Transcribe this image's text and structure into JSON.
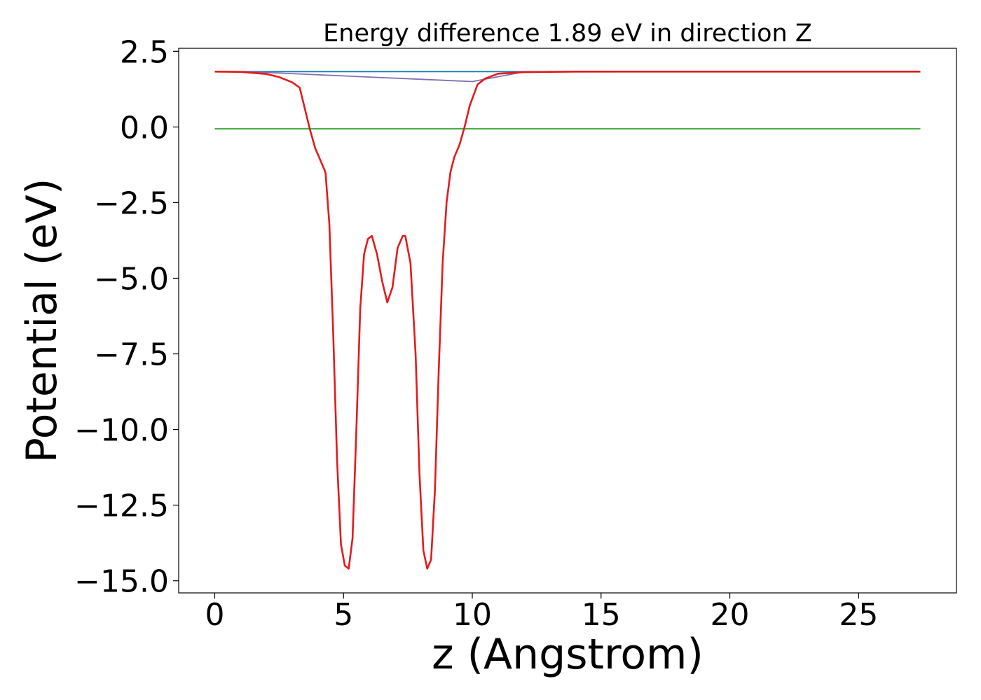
{
  "chart_data": {
    "type": "line",
    "title": "Energy difference 1.89 eV in direction Z",
    "xlabel": "z (Angstrom)",
    "ylabel": "Potential (eV)",
    "xlim": [
      -1.4,
      28.8
    ],
    "ylim": [
      -15.4,
      2.6
    ],
    "x_ticks": [
      0,
      5,
      10,
      15,
      20,
      25
    ],
    "x_tick_labels": [
      "0",
      "5",
      "10",
      "15",
      "20",
      "25"
    ],
    "y_ticks": [
      2.5,
      0.0,
      -2.5,
      -5.0,
      -7.5,
      -10.0,
      -12.5,
      -15.0
    ],
    "y_tick_labels": [
      "2.5",
      "0.0",
      "−2.5",
      "−5.0",
      "−7.5",
      "−10.0",
      "−12.5",
      "−15.0"
    ],
    "grid": false,
    "series": [
      {
        "color": "#1f77b4",
        "x": [
          0,
          27.4
        ],
        "y": [
          1.83,
          1.83
        ]
      },
      {
        "color": "#2ca02c",
        "x": [
          0,
          27.4
        ],
        "y": [
          -0.06,
          -0.06
        ]
      },
      {
        "color": "#7f6fb0",
        "x": [
          0,
          2.0,
          10.0,
          12.0,
          27.4
        ],
        "y": [
          1.83,
          1.8,
          1.5,
          1.82,
          1.83
        ]
      },
      {
        "color": "#e41a1c",
        "x": [
          0,
          1.0,
          2.0,
          2.5,
          3.0,
          3.3,
          3.5,
          3.7,
          3.9,
          4.1,
          4.3,
          4.45,
          4.6,
          4.75,
          4.9,
          5.05,
          5.2,
          5.35,
          5.5,
          5.65,
          5.8,
          5.95,
          6.1,
          6.3,
          6.5,
          6.7,
          6.9,
          7.1,
          7.3,
          7.4,
          7.6,
          7.8,
          7.95,
          8.1,
          8.25,
          8.4,
          8.55,
          8.7,
          8.85,
          9.0,
          9.15,
          9.3,
          9.5,
          9.7,
          9.9,
          10.2,
          10.5,
          11.0,
          12.0,
          14.0,
          27.4
        ],
        "y": [
          1.83,
          1.82,
          1.75,
          1.65,
          1.48,
          1.3,
          0.6,
          -0.1,
          -0.7,
          -1.1,
          -1.5,
          -3.2,
          -6.8,
          -11.0,
          -13.8,
          -14.5,
          -14.6,
          -13.6,
          -10.0,
          -6.0,
          -4.2,
          -3.7,
          -3.6,
          -4.2,
          -5.1,
          -5.8,
          -5.3,
          -4.0,
          -3.6,
          -3.6,
          -4.5,
          -7.5,
          -11.5,
          -14.0,
          -14.6,
          -14.3,
          -12.0,
          -8.0,
          -4.5,
          -2.5,
          -1.5,
          -1.0,
          -0.6,
          0.0,
          0.7,
          1.4,
          1.6,
          1.76,
          1.81,
          1.83,
          1.83
        ]
      }
    ]
  }
}
